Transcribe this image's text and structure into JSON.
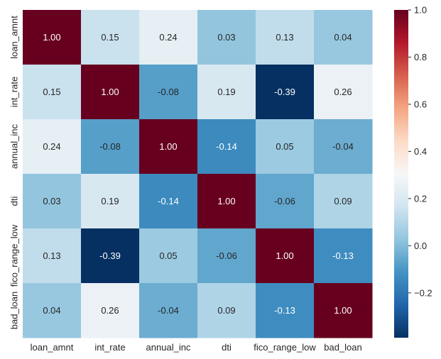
{
  "chart_data": {
    "type": "heatmap",
    "title": "",
    "xlabel": "",
    "ylabel": "",
    "x_categories": [
      "loan_amnt",
      "int_rate",
      "annual_inc",
      "dti",
      "fico_range_low",
      "bad_loan"
    ],
    "y_categories": [
      "loan_amnt",
      "int_rate",
      "annual_inc",
      "dti",
      "fico_range_low",
      "bad_loan"
    ],
    "values": [
      [
        1.0,
        0.15,
        0.24,
        0.03,
        0.13,
        0.04
      ],
      [
        0.15,
        1.0,
        -0.08,
        0.19,
        -0.39,
        0.26
      ],
      [
        0.24,
        -0.08,
        1.0,
        -0.14,
        0.05,
        -0.04
      ],
      [
        0.03,
        0.19,
        -0.14,
        1.0,
        -0.06,
        0.09
      ],
      [
        0.13,
        -0.39,
        0.05,
        -0.06,
        1.0,
        -0.13
      ],
      [
        0.04,
        0.26,
        -0.04,
        0.09,
        -0.13,
        1.0
      ]
    ],
    "cell_format": "2f",
    "colormap": "RdBu_r",
    "color_range": [
      -0.39,
      1.0
    ],
    "colorbar": {
      "placement": "right",
      "ticks": [
        1.0,
        0.8,
        0.6,
        0.4,
        0.2,
        0.0,
        -0.2
      ],
      "tick_labels": [
        "1.0",
        "0.8",
        "0.6",
        "0.4",
        "0.2",
        "0.0",
        "−0.2"
      ]
    },
    "grid": false,
    "legend": "none"
  }
}
